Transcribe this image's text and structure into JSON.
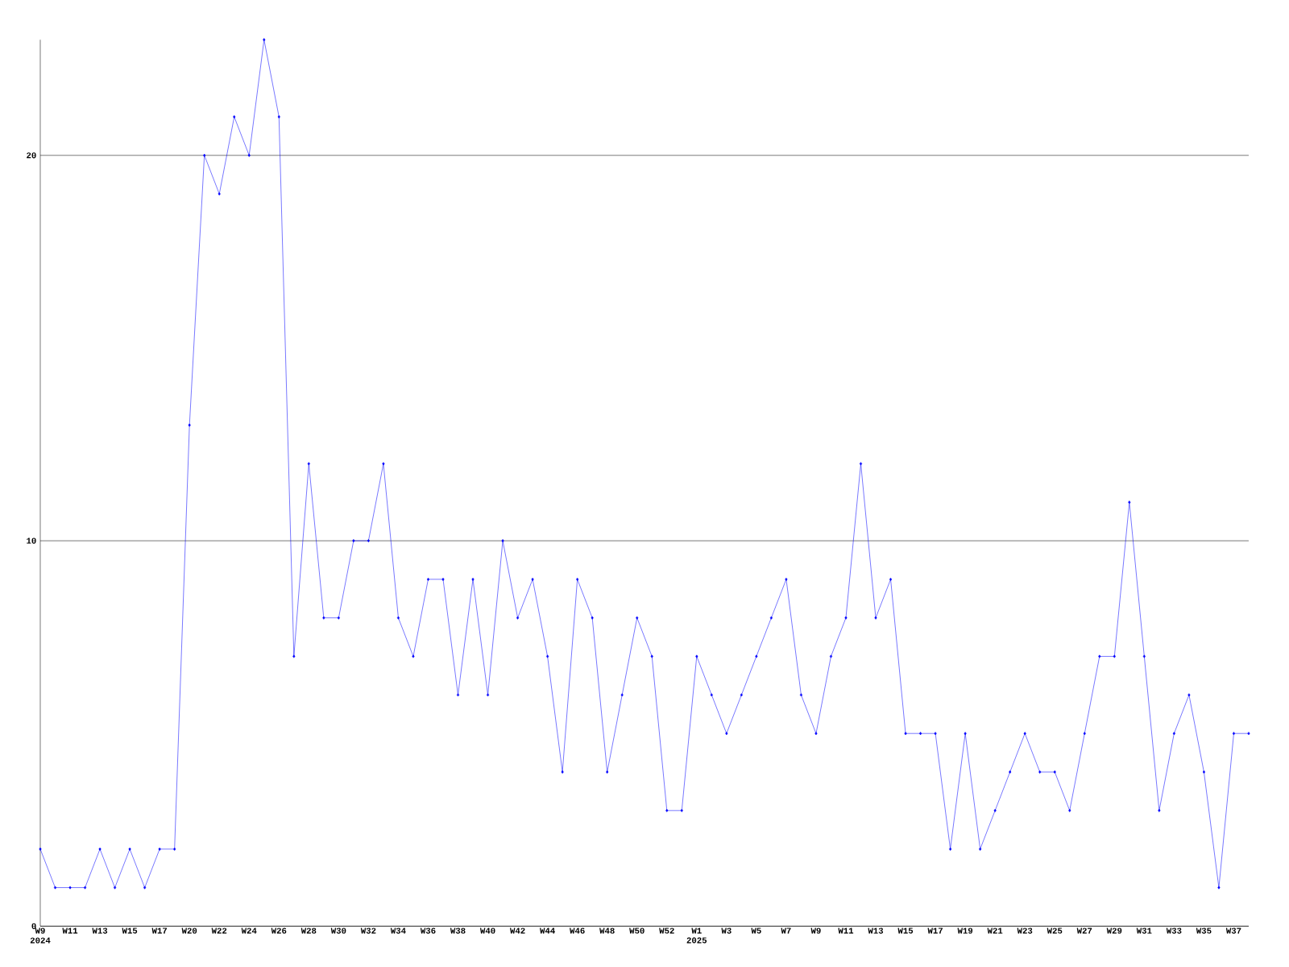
{
  "chart_data": {
    "type": "line",
    "categories": [
      "W9 2024",
      null,
      "W11",
      null,
      "W13",
      null,
      "W15",
      null,
      "W17",
      null,
      "W20",
      null,
      "W22",
      null,
      "W24",
      null,
      "W26",
      null,
      "W28",
      null,
      "W30",
      null,
      "W32",
      null,
      "W34",
      null,
      "W36",
      null,
      "W38",
      null,
      "W40",
      null,
      "W42",
      null,
      "W44",
      null,
      "W46",
      null,
      "W48",
      null,
      "W50",
      null,
      "W52",
      null,
      "W1 2025",
      null,
      "W3",
      null,
      "W5",
      null,
      "W7",
      null,
      "W9",
      null,
      "W11",
      null,
      "W13",
      null,
      "W15",
      null,
      "W17",
      null,
      "W19",
      null,
      "W21",
      null,
      "W23",
      null,
      "W25",
      null,
      "W27",
      null,
      "W29",
      null,
      "W31",
      null,
      "W33",
      null,
      "W35",
      null,
      "W37",
      null
    ],
    "values": [
      2,
      1,
      1,
      1,
      2,
      1,
      2,
      1,
      2,
      2,
      13,
      20,
      19,
      21,
      20,
      23,
      21,
      7,
      12,
      8,
      8,
      10,
      10,
      12,
      8,
      7,
      9,
      9,
      6,
      9,
      6,
      10,
      8,
      9,
      7,
      4,
      9,
      8,
      4,
      6,
      8,
      7,
      3,
      3,
      7,
      6,
      5,
      6,
      7,
      8,
      9,
      6,
      5,
      7,
      8,
      12,
      8,
      9,
      5,
      5,
      5,
      2,
      5,
      2,
      3,
      4,
      5,
      4,
      4,
      3,
      5,
      7,
      7,
      11,
      7,
      3,
      5,
      6,
      4,
      1,
      5,
      5
    ],
    "color": "#0000ff",
    "marker": "diamond",
    "line_style": "solid",
    "ylim": [
      0,
      23
    ],
    "yticks": [
      0,
      10,
      20
    ],
    "grid": "y"
  }
}
